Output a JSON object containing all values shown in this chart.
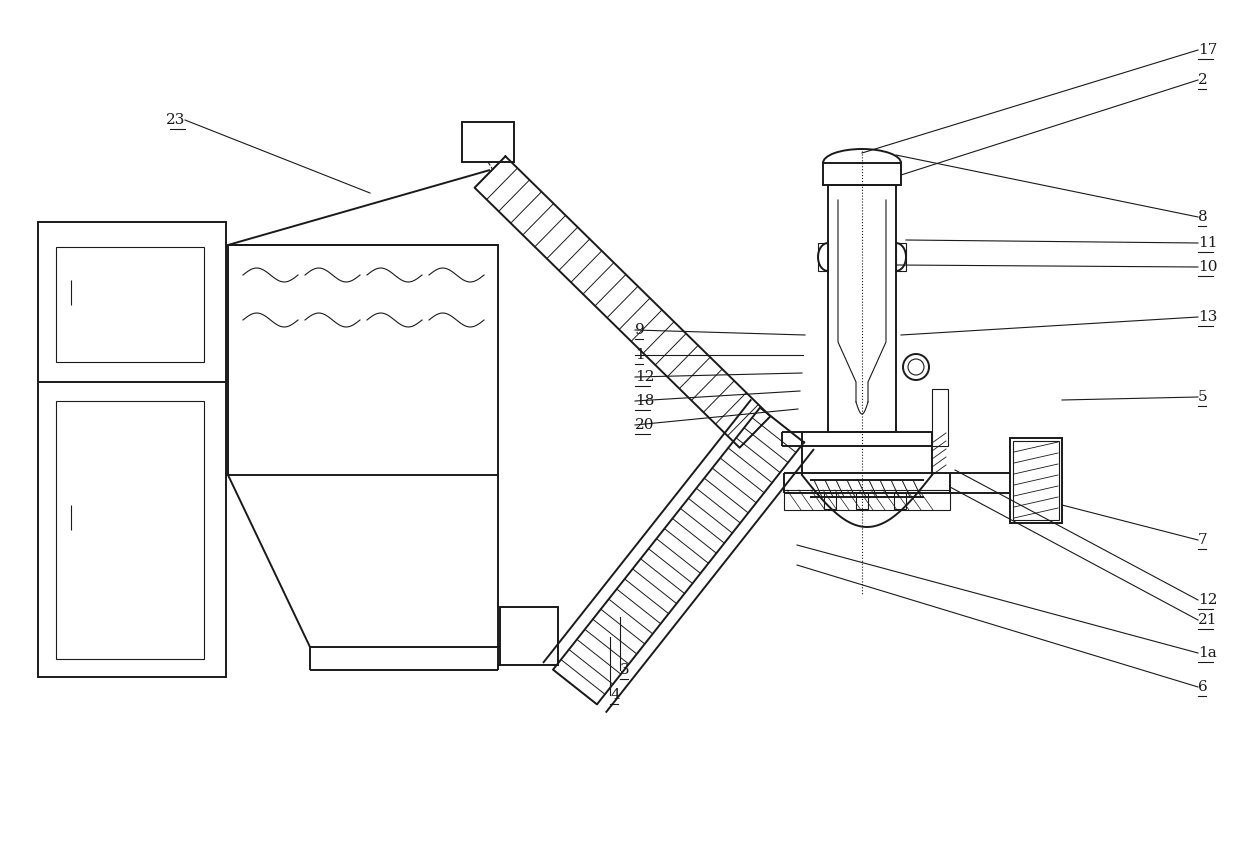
{
  "bg_color": "#ffffff",
  "line_color": "#1a1a1a",
  "lw": 1.4,
  "tlw": 0.8,
  "fs": 11,
  "fig_w": 12.4,
  "fig_h": 8.65,
  "dpi": 100
}
